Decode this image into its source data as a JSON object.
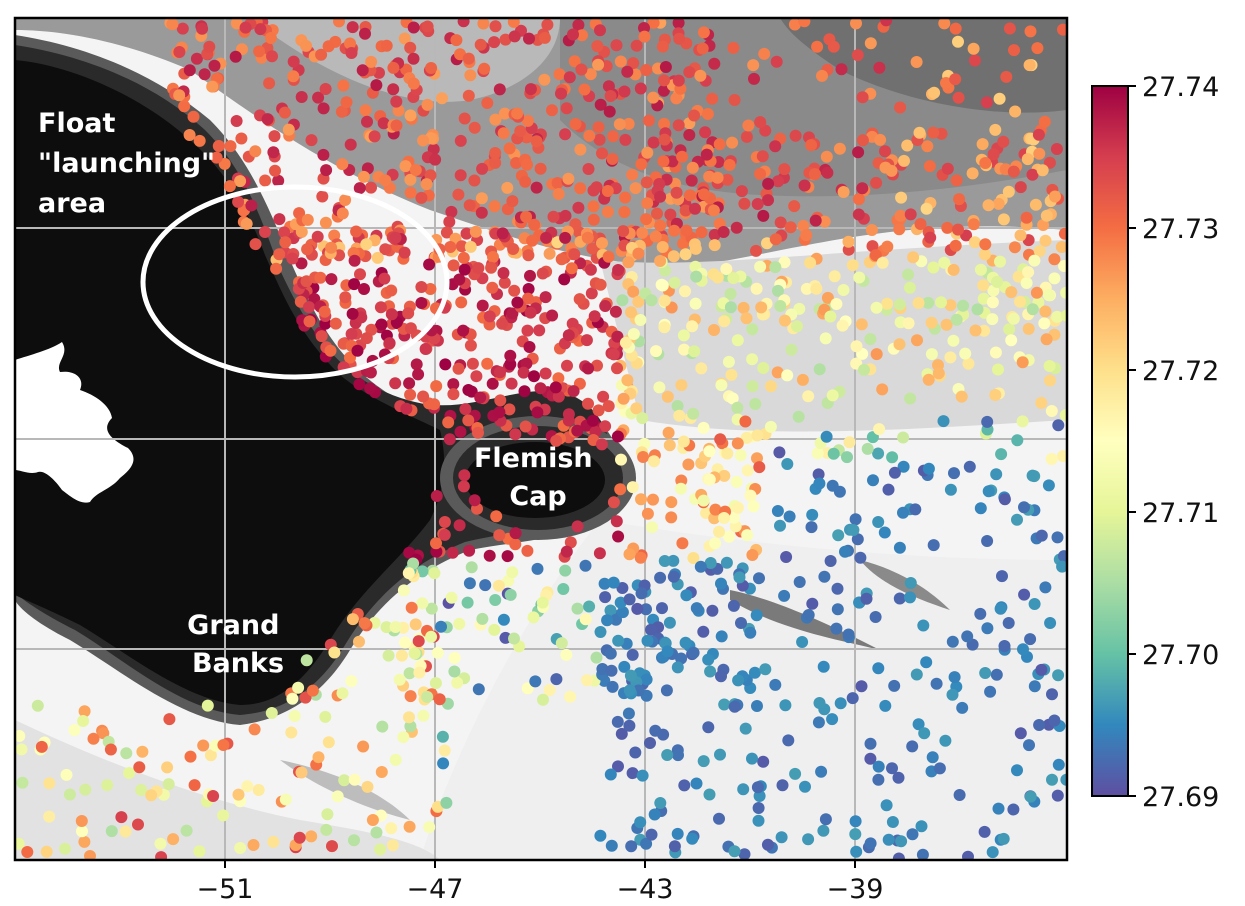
{
  "chart_data": {
    "type": "scatter",
    "title": "",
    "xlabel": "",
    "ylabel": "",
    "xlim": [
      -55,
      -35
    ],
    "x_ticks": [
      "−51",
      "−47",
      "−43",
      "−39"
    ],
    "x_tick_values": [
      -51,
      -47,
      -43,
      -39
    ],
    "grid": true,
    "colorbar": {
      "colormap": "Spectral_r",
      "min": 27.69,
      "max": 27.74,
      "ticks": [
        "27.74",
        "27.73",
        "27.72",
        "27.71",
        "27.70",
        "27.69"
      ],
      "tick_values": [
        27.74,
        27.73,
        27.72,
        27.71,
        27.7,
        27.69
      ],
      "position": "right"
    },
    "background": "bathymetry (land/shelf in black, deep water in white/gray)",
    "annotations": [
      {
        "lines": [
          "Float",
          "\"launching\"",
          "area"
        ],
        "type": "text"
      },
      {
        "lines": [
          "Flemish",
          "Cap"
        ],
        "type": "text"
      },
      {
        "lines": [
          "Grand",
          "Banks"
        ],
        "type": "text"
      },
      {
        "type": "ellipse",
        "meaning": "float launching area highlight",
        "color": "#ffffff"
      }
    ],
    "series_summary": [
      {
        "region": "north-west (launching area)",
        "density_value_approx": 27.735
      },
      {
        "region": "north-central",
        "density_value_approx": 27.73
      },
      {
        "region": "east-central",
        "density_value_approx": 27.715
      },
      {
        "region": "south-east",
        "density_value_approx": 27.69
      },
      {
        "region": "south-west near Grand Banks",
        "density_value_approx": 27.72
      }
    ]
  },
  "colors": {
    "land": "#0d0d0d",
    "frame": "#000000",
    "grid": "#b8b8b8",
    "ellipse": "#ffffff",
    "label_text": "#ffffff"
  }
}
